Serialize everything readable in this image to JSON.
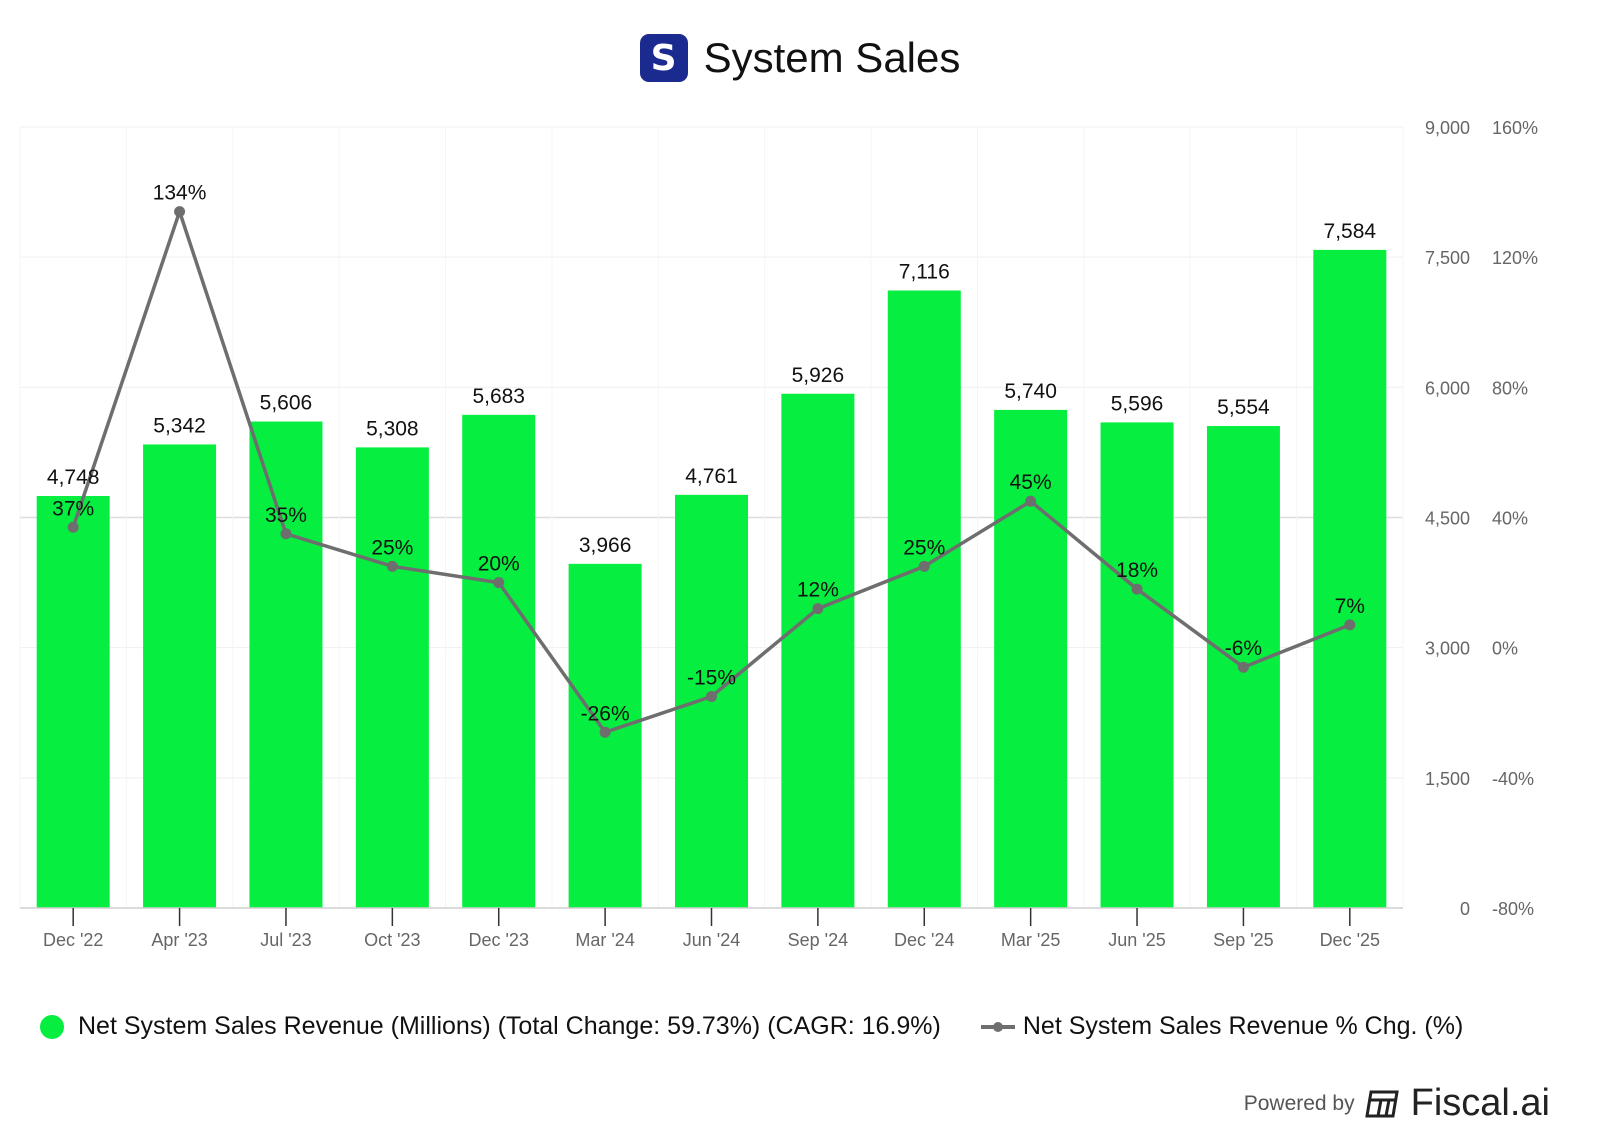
{
  "header": {
    "logo_glyph": "S",
    "title": "System Sales"
  },
  "chart_data": {
    "type": "bar",
    "title": "System Sales",
    "categories": [
      "Dec '22",
      "Apr '23",
      "Jul '23",
      "Oct '23",
      "Dec '23",
      "Mar '24",
      "Jun '24",
      "Sep '24",
      "Dec '24",
      "Mar '25",
      "Jun '25",
      "Sep '25",
      "Dec '25"
    ],
    "series": [
      {
        "name": "Net System Sales Revenue (Millions) (Total Change: 59.73%) (CAGR: 16.9%)",
        "type": "bar",
        "axis": "left",
        "color": "#06ee3f",
        "values": [
          4748,
          5342,
          5606,
          5308,
          5683,
          3966,
          4761,
          5926,
          7116,
          5740,
          5596,
          5554,
          7584
        ],
        "labels": [
          "4,748",
          "5,342",
          "5,606",
          "5,308",
          "5,683",
          "3,966",
          "4,761",
          "5,926",
          "7,116",
          "5,740",
          "5,596",
          "5,554",
          "7,584"
        ]
      },
      {
        "name": "Net System Sales Revenue % Chg. (%)",
        "type": "line",
        "axis": "right",
        "color": "#6e6e6e",
        "values": [
          37,
          134,
          35,
          25,
          20,
          -26,
          -15,
          12,
          25,
          45,
          18,
          -6,
          7
        ],
        "labels": [
          "37%",
          "134%",
          "35%",
          "25%",
          "20%",
          "-26%",
          "-15%",
          "12%",
          "25%",
          "45%",
          "18%",
          "-6%",
          "7%"
        ]
      }
    ],
    "y_left": {
      "ylim": [
        0,
        9000
      ],
      "ticks": [
        "0",
        "1,500",
        "3,000",
        "4,500",
        "6,000",
        "7,500",
        "9,000"
      ]
    },
    "y_right": {
      "ylim": [
        -80,
        160
      ],
      "ticks": [
        "-80%",
        "-40%",
        "0%",
        "40%",
        "80%",
        "120%",
        "160%"
      ]
    },
    "grid": true,
    "legend_position": "bottom"
  },
  "footer": {
    "powered_by": "Powered by",
    "brand": "Fiscal.ai"
  }
}
